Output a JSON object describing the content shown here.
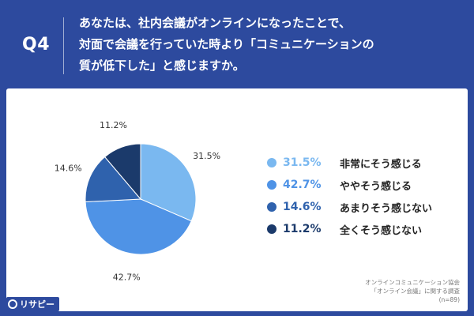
{
  "header": {
    "question_label": "Q4",
    "question_lines": [
      "あなたは、社内会議がオンラインになったことで、",
      "対面で会議を行っていた時より「コミュニケーションの",
      "質が低下した」と感じますか。"
    ]
  },
  "chart_data": {
    "type": "pie",
    "title": "",
    "slices": [
      {
        "label": "非常にそう感じる",
        "value": 31.5,
        "display": "31.5%",
        "color": "#7ab8f0"
      },
      {
        "label": "ややそう感じる",
        "value": 42.7,
        "display": "42.7%",
        "color": "#4f93e6"
      },
      {
        "label": "あまりそう感じない",
        "value": 14.6,
        "display": "14.6%",
        "color": "#2f62ad"
      },
      {
        "label": "全くそう感じない",
        "value": 11.2,
        "display": "11.2%",
        "color": "#1b3a6b"
      }
    ],
    "legend_position": "right"
  },
  "source": {
    "line1": "オンラインコミュニケーション協会",
    "line2": "「オンライン会議」に関する調査",
    "line3": "(n=89)"
  },
  "logo": {
    "text": "リサピー",
    "icon": "magnifier-icon"
  }
}
